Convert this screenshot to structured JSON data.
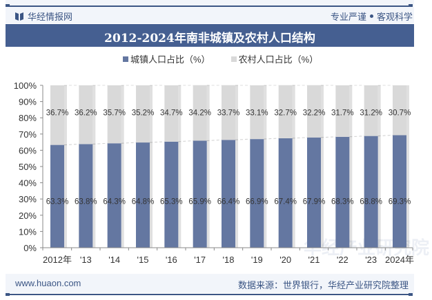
{
  "header": {
    "logo_text": "华经情报网",
    "logo_icon": "book-icon",
    "slogan_left": "专业严谨",
    "slogan_right": "客观科学"
  },
  "footer": {
    "url": "www.huaon.com",
    "source": "数据来源：世界银行，华经产业研究院整理"
  },
  "watermark": {
    "text": "华经产业研究院",
    "url": "www.huaon.com"
  },
  "colors": {
    "brand": "#3b5584",
    "title_bg": "#455f91",
    "urban": "#6477a1",
    "rural": "#d9d9d9"
  },
  "chart_data": {
    "type": "bar",
    "stacked": true,
    "percent_stacked": true,
    "title": "2012-2024年南非城镇及农村人口结构",
    "categories": [
      "2012年",
      "'13",
      "'14",
      "'15",
      "'16",
      "'17",
      "'18",
      "'19",
      "'20",
      "'21",
      "'22",
      "'23",
      "2024年"
    ],
    "series": [
      {
        "name": "城镇人口占比（%）",
        "values": [
          63.3,
          63.8,
          64.3,
          64.8,
          65.3,
          65.9,
          66.4,
          66.9,
          67.4,
          67.9,
          68.3,
          68.8,
          69.3
        ]
      },
      {
        "name": "农村人口占比（%）",
        "values": [
          36.7,
          36.2,
          35.7,
          35.2,
          34.7,
          34.2,
          33.7,
          33.1,
          32.7,
          32.2,
          31.7,
          31.2,
          30.7
        ]
      }
    ],
    "ylim": [
      0,
      100
    ],
    "yticks": [
      "0%",
      "10%",
      "20%",
      "30%",
      "40%",
      "50%",
      "60%",
      "70%",
      "80%",
      "90%",
      "100%"
    ],
    "xlabel": "",
    "ylabel": "",
    "legend_position": "top",
    "grid": false,
    "value_suffix": "%"
  }
}
